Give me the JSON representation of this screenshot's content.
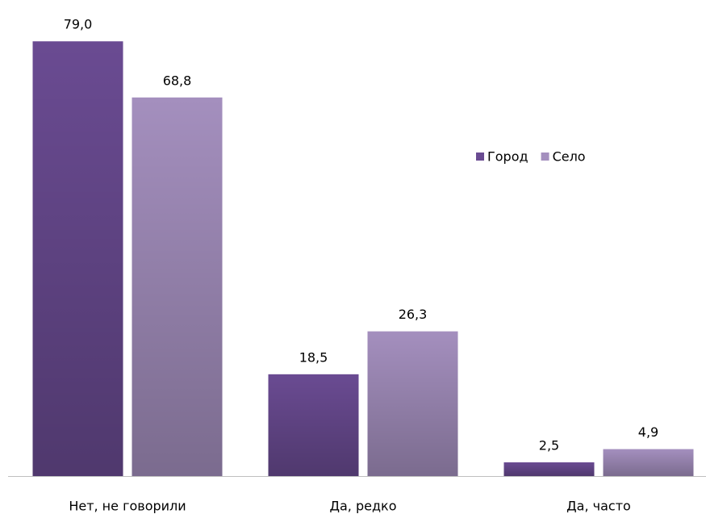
{
  "chart_data": {
    "type": "bar",
    "categories": [
      "Нет, не говорили",
      "Да, редко",
      "Да, часто"
    ],
    "series": [
      {
        "name": "Город",
        "color": "#6a4b92",
        "values": [
          79.0,
          18.5,
          2.5
        ],
        "value_labels": [
          "79,0",
          "18,5",
          "2,5"
        ]
      },
      {
        "name": "Село",
        "color": "#a48fbe",
        "values": [
          68.8,
          26.3,
          4.9
        ],
        "value_labels": [
          "68,8",
          "26,3",
          "4,9"
        ]
      }
    ],
    "legend": "right"
  }
}
